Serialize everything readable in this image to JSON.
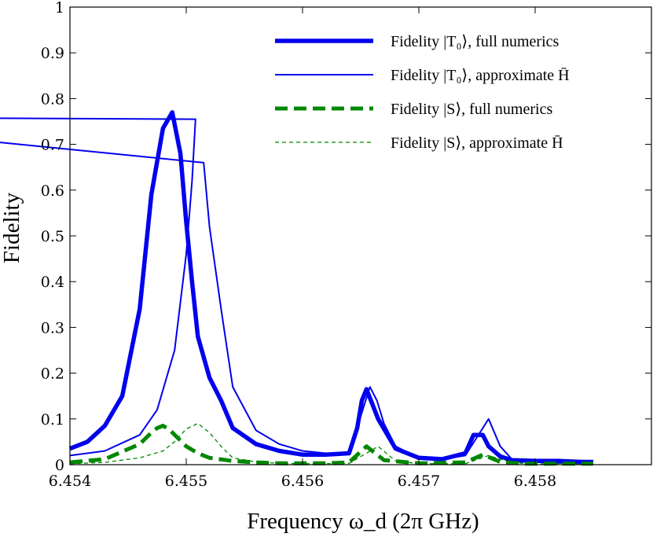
{
  "chart_data": {
    "type": "line",
    "title": "",
    "xlabel": "Frequency ω_d (2π GHz)",
    "ylabel": "Fidelity",
    "xlim": [
      6.454,
      6.459
    ],
    "ylim": [
      0,
      1
    ],
    "xticks": [
      "6.454",
      "6.455",
      "6.456",
      "6.457",
      "6.458"
    ],
    "yticks": [
      "0",
      "0.1",
      "0.2",
      "0.3",
      "0.4",
      "0.5",
      "0.6",
      "0.7",
      "0.8",
      "0.9",
      "1"
    ],
    "grid": false,
    "legend_position": "top-right",
    "series": [
      {
        "name": "Fidelity |T₀⟩, full numerics",
        "color": "#0000ee",
        "style": "solid-thick",
        "x": [
          6.454,
          6.45415,
          6.4543,
          6.45445,
          6.4546,
          6.4547,
          6.4548,
          6.45488,
          6.45495,
          6.455,
          6.45505,
          6.4551,
          6.4552,
          6.4553,
          6.4554,
          6.4556,
          6.4558,
          6.456,
          6.4562,
          6.4564,
          6.45647,
          6.45651,
          6.45655,
          6.45665,
          6.4568,
          6.457,
          6.4572,
          6.4574,
          6.45747,
          6.45755,
          6.4576,
          6.4577,
          6.4578,
          6.458,
          6.4582,
          6.4584,
          6.4585
        ],
        "y": [
          0.035,
          0.05,
          0.085,
          0.15,
          0.34,
          0.59,
          0.735,
          0.77,
          0.68,
          0.53,
          0.4,
          0.28,
          0.19,
          0.14,
          0.08,
          0.045,
          0.03,
          0.022,
          0.022,
          0.025,
          0.08,
          0.14,
          0.165,
          0.1,
          0.035,
          0.015,
          0.012,
          0.025,
          0.065,
          0.065,
          0.04,
          0.018,
          0.01,
          0.008,
          0.008,
          0.006,
          0.006
        ]
      },
      {
        "name": "Fidelity |T₀⟩, approximate H̄",
        "color": "#0000ee",
        "style": "solid-thin",
        "x": [
          6.454,
          6.4543,
          6.4546,
          6.45475,
          6.4549,
          6.455,
          6.45505,
          6.45508,
          6.4512,
          6.45515,
          6.4552,
          6.4553,
          6.4554,
          6.4556,
          6.4558,
          6.456,
          6.4562,
          6.4564,
          6.45658,
          6.45664,
          6.4567,
          6.4568,
          6.457,
          6.4572,
          6.4574,
          6.4576,
          6.4577,
          6.4578,
          6.458,
          6.4582,
          6.4584,
          6.4585
        ],
        "y": [
          0.02,
          0.03,
          0.065,
          0.12,
          0.25,
          0.46,
          0.62,
          0.755,
          0.76,
          0.66,
          0.52,
          0.34,
          0.17,
          0.075,
          0.045,
          0.03,
          0.025,
          0.025,
          0.17,
          0.14,
          0.09,
          0.04,
          0.015,
          0.012,
          0.02,
          0.1,
          0.04,
          0.012,
          0.006,
          0.004,
          0.003,
          0.003
        ]
      },
      {
        "name": "Fidelity |S⟩, full numerics",
        "color": "#008800",
        "style": "dashed-thick",
        "x": [
          6.454,
          6.4543,
          6.4546,
          6.4547,
          6.45475,
          6.4548,
          6.45485,
          6.455,
          6.4551,
          6.4552,
          6.4554,
          6.4556,
          6.4558,
          6.456,
          6.4562,
          6.4564,
          6.45655,
          6.4567,
          6.457,
          6.4574,
          6.45755,
          6.4577,
          6.4579,
          6.4582,
          6.4585
        ],
        "y": [
          0.005,
          0.012,
          0.045,
          0.07,
          0.08,
          0.085,
          0.078,
          0.04,
          0.025,
          0.015,
          0.008,
          0.005,
          0.003,
          0.003,
          0.003,
          0.005,
          0.04,
          0.01,
          0.003,
          0.005,
          0.022,
          0.006,
          0.002,
          0.002,
          0.002
        ]
      },
      {
        "name": "Fidelity |S⟩, approximate H̄",
        "color": "#008800",
        "style": "dashed-thin",
        "x": [
          6.454,
          6.4543,
          6.4546,
          6.4548,
          6.4549,
          6.455,
          6.4551,
          6.4552,
          6.4553,
          6.4554,
          6.4556,
          6.4558,
          6.456,
          6.4562,
          6.4564,
          6.45665,
          6.4568,
          6.457,
          6.4574,
          6.4576,
          6.4578,
          6.458,
          6.4585
        ],
        "y": [
          0.002,
          0.005,
          0.015,
          0.03,
          0.05,
          0.078,
          0.09,
          0.07,
          0.04,
          0.015,
          0.006,
          0.003,
          0.002,
          0.002,
          0.003,
          0.04,
          0.008,
          0.002,
          0.002,
          0.02,
          0.004,
          0.002,
          0.001
        ]
      }
    ]
  }
}
